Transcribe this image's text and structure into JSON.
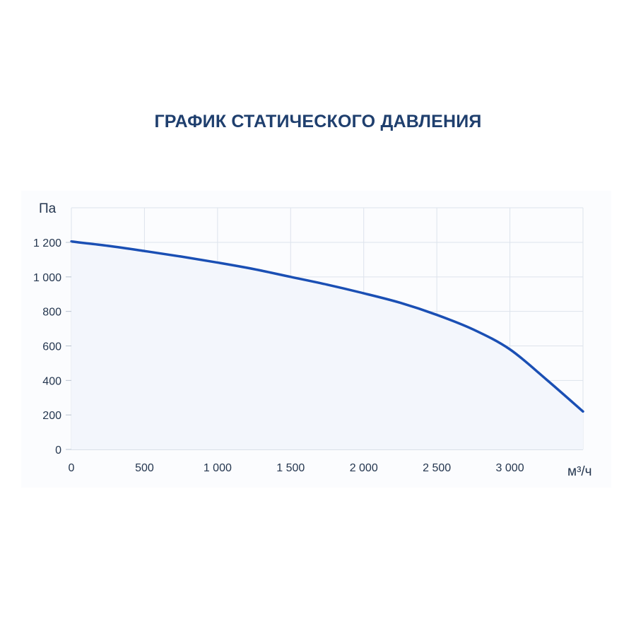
{
  "chart_data": {
    "type": "area",
    "title": "ГРАФИК СТАТИЧЕСКОГО ДАВЛЕНИЯ",
    "xlabel": "м³/ч",
    "ylabel": "Па",
    "xlim": [
      0,
      3500
    ],
    "ylim": [
      0,
      1200
    ],
    "x_ticks": [
      {
        "value": 0,
        "label": "0"
      },
      {
        "value": 500,
        "label": "500"
      },
      {
        "value": 1000,
        "label": "1 000"
      },
      {
        "value": 1500,
        "label": "1 500"
      },
      {
        "value": 2000,
        "label": "2 000"
      },
      {
        "value": 2500,
        "label": "2 500"
      },
      {
        "value": 3000,
        "label": "3 000"
      }
    ],
    "y_ticks": [
      {
        "value": 0,
        "label": "0"
      },
      {
        "value": 200,
        "label": "200"
      },
      {
        "value": 400,
        "label": "400"
      },
      {
        "value": 600,
        "label": "600"
      },
      {
        "value": 800,
        "label": "800"
      },
      {
        "value": 1000,
        "label": "1 000"
      },
      {
        "value": 1200,
        "label": "1 200"
      }
    ],
    "grid": true,
    "series": [
      {
        "color": "#1a4fb4",
        "fill": "#f3f6fc",
        "x": [
          0,
          250,
          500,
          750,
          1000,
          1250,
          1500,
          1750,
          2000,
          2250,
          2500,
          2750,
          3000,
          3250,
          3500
        ],
        "y": [
          1205,
          1180,
          1150,
          1118,
          1083,
          1045,
          1000,
          955,
          905,
          850,
          780,
          695,
          580,
          405,
          220
        ]
      }
    ]
  }
}
